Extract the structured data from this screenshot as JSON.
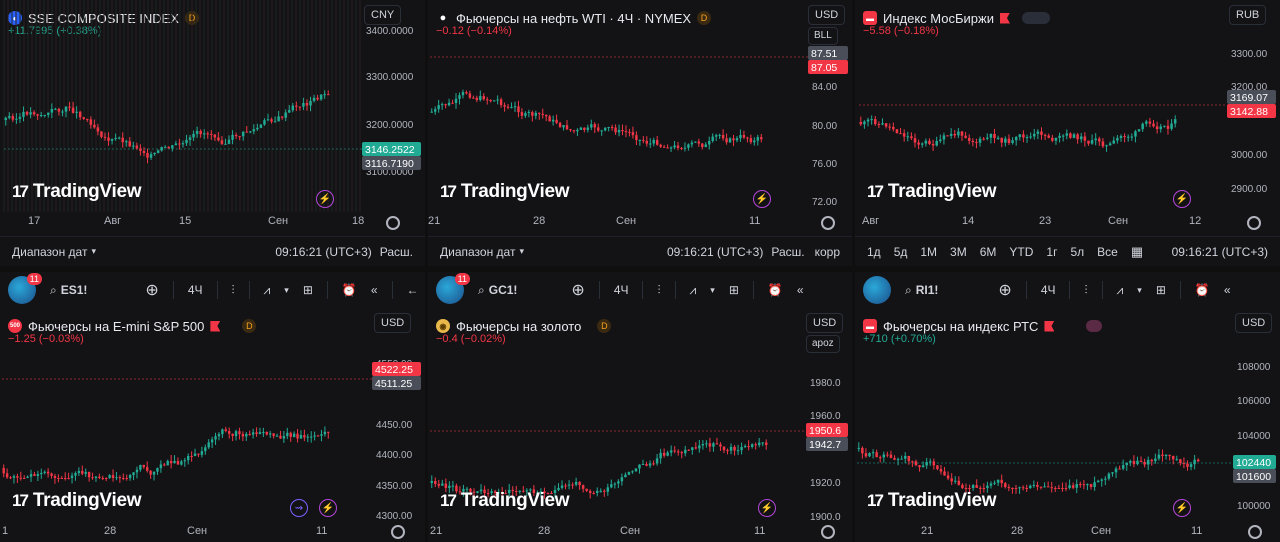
{
  "colors": {
    "up": "#22ab94",
    "down": "#f23645",
    "bg": "#131316",
    "text": "#d1d4dc",
    "accent": "#b446d9"
  },
  "brand": "TradingView",
  "panels": [
    {
      "symbol": "SSE COMPOSITE INDEX",
      "change": "+11.7995 (+0.38%)",
      "dir": "pos",
      "currency": "CNY",
      "subunit": "",
      "yticks": [
        "3400.0000",
        "3300.0000",
        "3200.0000",
        "3100.0000"
      ],
      "price_badges": [
        {
          "text": "3146.2522",
          "kind": "up"
        },
        {
          "text": "3116.7190",
          "kind": "gray"
        }
      ],
      "xticks": [
        "17",
        "Авг",
        "15",
        "Сен",
        "18"
      ],
      "bottombar": {
        "range": "Диапазон дат",
        "time": "09:16:21 (UTC+3)",
        "mode": "Расш.",
        "extra": ""
      }
    },
    {
      "symbol": "Фьючерсы на нефть WTI · 4Ч · NYMEX",
      "change": "−0.12 (−0.14%)",
      "dir": "neg",
      "currency": "USD",
      "subunit": "BLL",
      "yticks": [
        "84.00",
        "80.00",
        "76.00",
        "72.00"
      ],
      "price_badges": [
        {
          "text": "87.51",
          "kind": "gray"
        },
        {
          "text": "87.05",
          "kind": "down"
        }
      ],
      "xticks": [
        "21",
        "28",
        "Сен",
        "11"
      ],
      "bottombar": {
        "range": "Диапазон дат",
        "time": "09:16:21 (UTC+3)",
        "mode": "Расш.",
        "extra": "корр"
      }
    },
    {
      "symbol": "Индекс МосБиржи",
      "change": "−5.58 (−0.18%)",
      "dir": "neg",
      "currency": "RUB",
      "subunit": "",
      "yticks": [
        "3300.00",
        "3200.00",
        "3000.00",
        "2900.00"
      ],
      "price_badges": [
        {
          "text": "3169.07",
          "kind": "gray"
        },
        {
          "text": "3142.88",
          "kind": "down"
        }
      ],
      "xticks": [
        "Авг",
        "14",
        "23",
        "Сен",
        "12"
      ],
      "bottombar": {
        "ranges": [
          "1д",
          "5д",
          "1М",
          "3М",
          "6М",
          "YTD",
          "1г",
          "5л",
          "Все"
        ],
        "time": "09:16:21 (UTC+3)"
      }
    },
    {
      "symbol": "Фьючерсы на E-mini S&P 500",
      "change": "−1.25 (−0.03%)",
      "dir": "neg",
      "currency": "USD",
      "subunit": "",
      "yticks": [
        "4550.00",
        "4450.00",
        "4400.00",
        "4350.00",
        "4300.00"
      ],
      "price_badges": [
        {
          "text": "4522.25",
          "kind": "down"
        },
        {
          "text": "4511.25",
          "kind": "gray"
        }
      ],
      "xticks": [
        "1",
        "28",
        "Сен",
        "11"
      ],
      "toolbar": {
        "ticker": "ES1!",
        "interval": "4Ч",
        "count": "11"
      }
    },
    {
      "symbol": "Фьючерсы на золото",
      "change": "−0.4 (−0.02%)",
      "dir": "neg",
      "currency": "USD",
      "subunit": "apoz",
      "yticks": [
        "1980.0",
        "1960.0",
        "1920.0",
        "1900.0"
      ],
      "price_badges": [
        {
          "text": "1950.6",
          "kind": "down"
        },
        {
          "text": "1942.7",
          "kind": "gray"
        }
      ],
      "xticks": [
        "21",
        "28",
        "Сен",
        "11"
      ],
      "toolbar": {
        "ticker": "GC1!",
        "interval": "4Ч",
        "count": "11"
      }
    },
    {
      "symbol": "Фьючерсы на индекс РТС",
      "change": "+710 (+0.70%)",
      "dir": "pos",
      "currency": "USD",
      "subunit": "",
      "yticks": [
        "108000",
        "106000",
        "104000",
        "100000"
      ],
      "price_badges": [
        {
          "text": "102440",
          "kind": "up"
        },
        {
          "text": "101600",
          "kind": "gray"
        }
      ],
      "xticks": [
        "21",
        "28",
        "Сен",
        "11"
      ],
      "toolbar": {
        "ticker": "RI1!",
        "interval": "4Ч",
        "count": ""
      }
    }
  ]
}
